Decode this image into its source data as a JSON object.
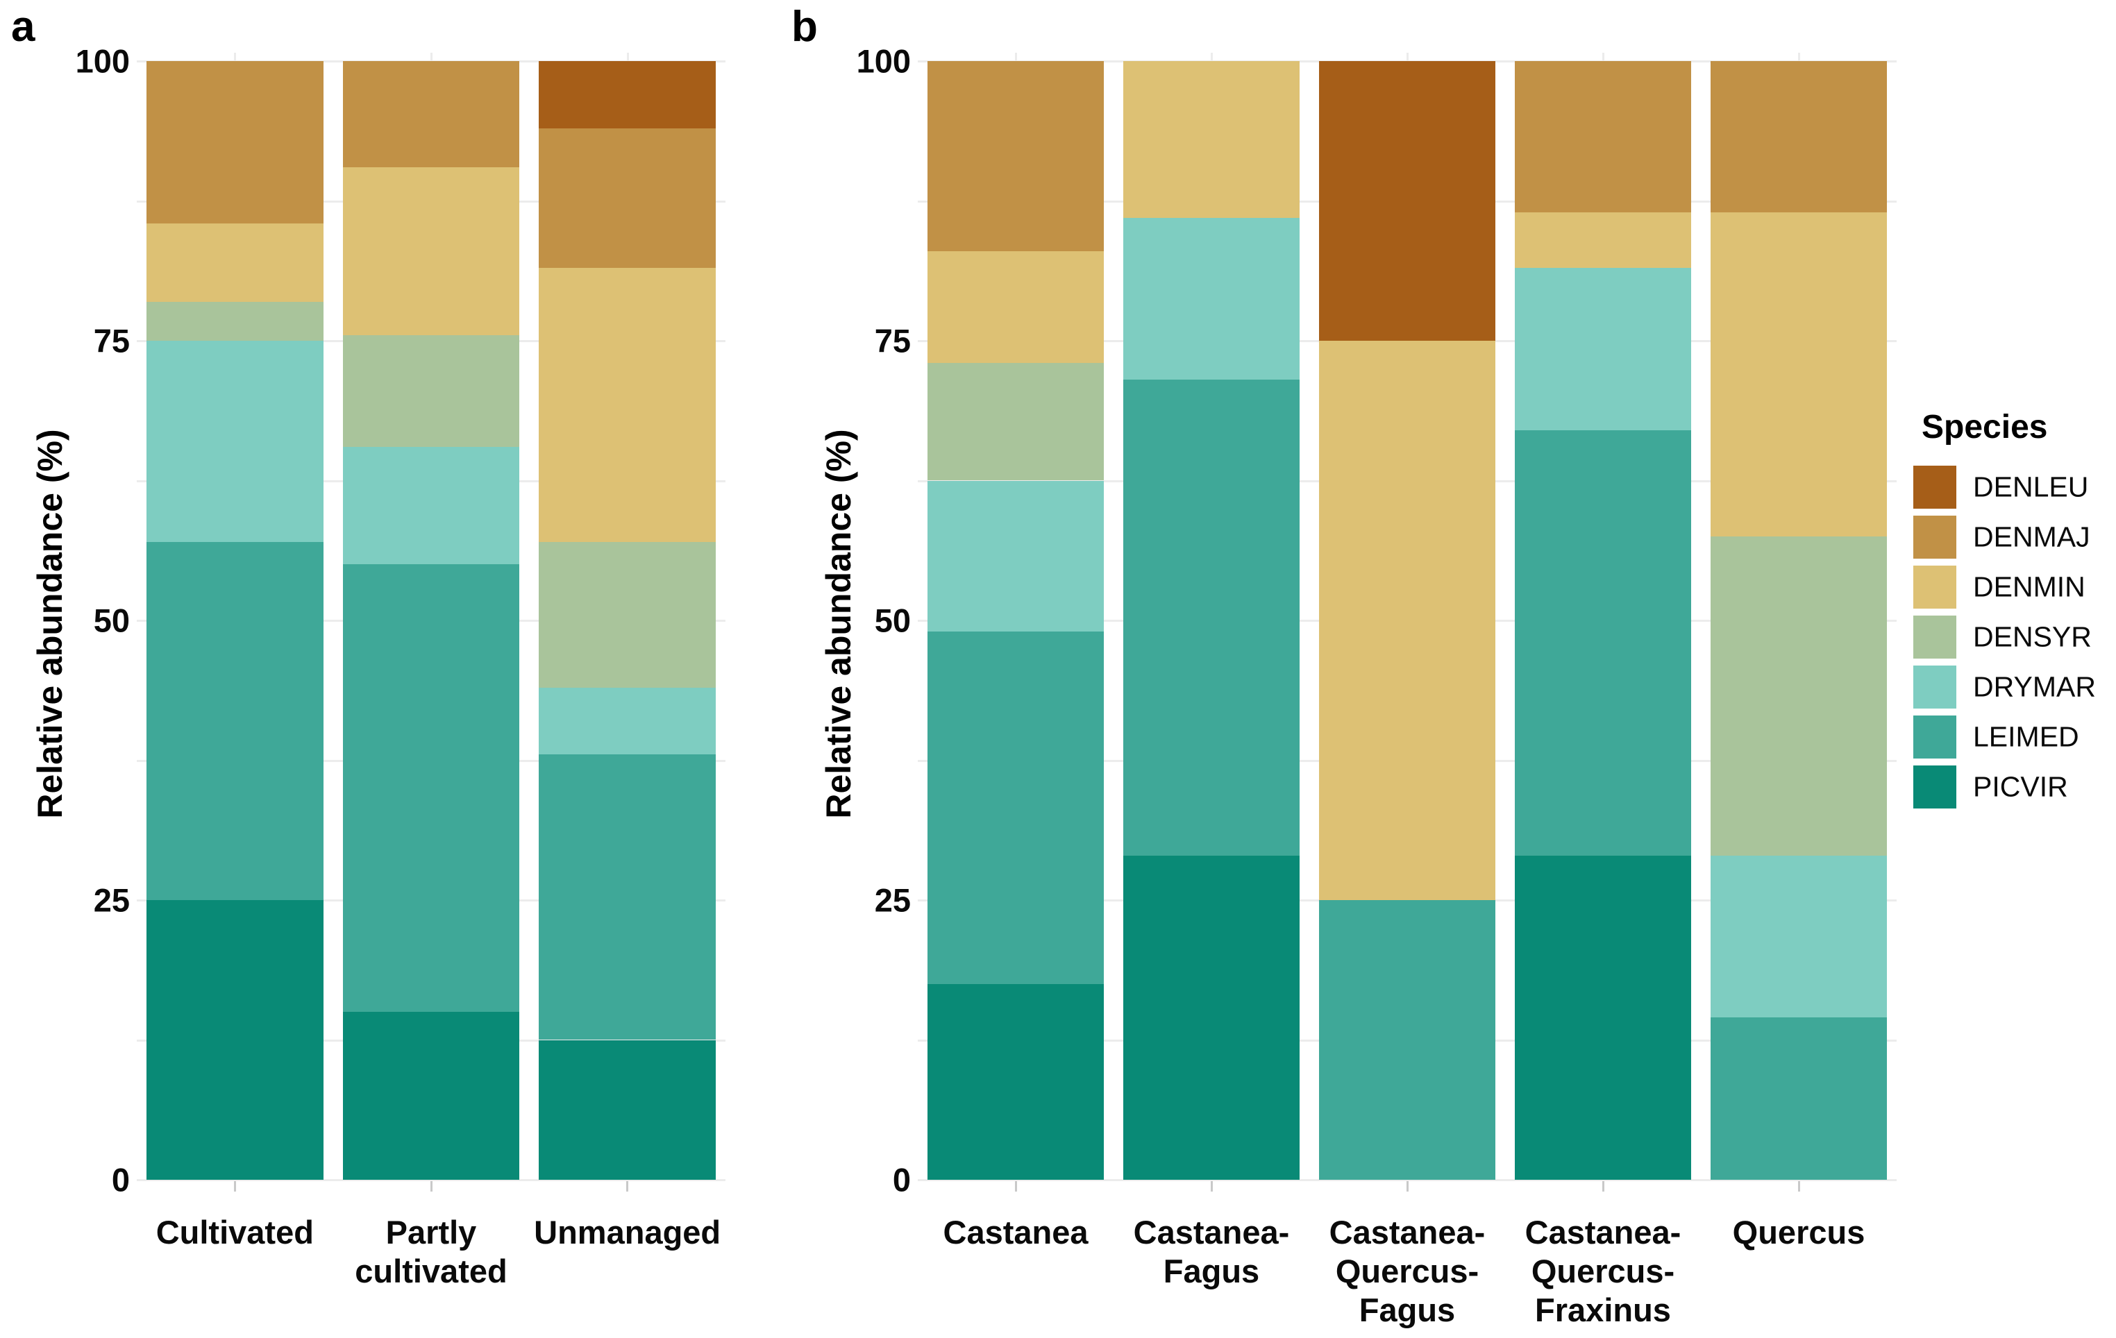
{
  "figure": {
    "panel_a_letter": "a",
    "panel_b_letter": "b",
    "y_axis_title": "Relative abundance (%)"
  },
  "legend": {
    "title": "Species",
    "items": [
      {
        "label": "DENLEU",
        "color": "#a65e18"
      },
      {
        "label": "DENMAJ",
        "color": "#c19146"
      },
      {
        "label": "DENMIN",
        "color": "#ddc174"
      },
      {
        "label": "DENSYR",
        "color": "#a9c49b"
      },
      {
        "label": "DRYMAR",
        "color": "#7ecdc1"
      },
      {
        "label": "LEIMED",
        "color": "#3fa898"
      },
      {
        "label": "PICVIR",
        "color": "#098a76"
      }
    ]
  },
  "palette": {
    "DENLEU": "#a65e18",
    "DENMAJ": "#c19146",
    "DENMIN": "#ddc174",
    "DENSYR": "#a9c49b",
    "DRYMAR": "#7ecdc1",
    "LEIMED": "#3fa898",
    "PICVIR": "#098a76"
  },
  "chart_data": [
    {
      "type": "bar",
      "panel": "a",
      "stacked": true,
      "title": "",
      "xlabel": "",
      "ylabel": "Relative abundance (%)",
      "ylim": [
        0,
        100
      ],
      "y_ticks": [
        0,
        25,
        50,
        75,
        100
      ],
      "minor_grid_step": 12.5,
      "grid": true,
      "categories": [
        "Cultivated",
        "Partly\ncultivated",
        "Unmanaged"
      ],
      "stack_order_bottom_to_top": [
        "PICVIR",
        "LEIMED",
        "DRYMAR",
        "DENSYR",
        "DENMIN",
        "DENMAJ",
        "DENLEU"
      ],
      "series": [
        {
          "name": "PICVIR",
          "values": [
            25,
            15,
            12.5
          ]
        },
        {
          "name": "LEIMED",
          "values": [
            32,
            40,
            25.5
          ]
        },
        {
          "name": "DRYMAR",
          "values": [
            18,
            10.5,
            6
          ]
        },
        {
          "name": "DENSYR",
          "values": [
            3.5,
            10,
            13
          ]
        },
        {
          "name": "DENMIN",
          "values": [
            7,
            15,
            24.5
          ]
        },
        {
          "name": "DENMAJ",
          "values": [
            14.5,
            9.5,
            12.5
          ]
        },
        {
          "name": "DENLEU",
          "values": [
            0,
            0,
            6
          ]
        }
      ]
    },
    {
      "type": "bar",
      "panel": "b",
      "stacked": true,
      "title": "",
      "xlabel": "",
      "ylabel": "Relative abundance (%)",
      "ylim": [
        0,
        100
      ],
      "y_ticks": [
        0,
        25,
        50,
        75,
        100
      ],
      "minor_grid_step": 12.5,
      "grid": true,
      "categories": [
        "Castanea",
        "Castanea-\nFagus",
        "Castanea-\nQuercus-\nFagus",
        "Castanea-\nQuercus-\nFraxinus",
        "Quercus"
      ],
      "stack_order_bottom_to_top": [
        "PICVIR",
        "LEIMED",
        "DRYMAR",
        "DENSYR",
        "DENMIN",
        "DENMAJ",
        "DENLEU"
      ],
      "series": [
        {
          "name": "PICVIR",
          "values": [
            17.5,
            29,
            0,
            29,
            0
          ]
        },
        {
          "name": "LEIMED",
          "values": [
            31.5,
            42.5,
            25,
            38,
            14.5
          ]
        },
        {
          "name": "DRYMAR",
          "values": [
            13.5,
            14.5,
            0,
            14.5,
            14.5
          ]
        },
        {
          "name": "DENSYR",
          "values": [
            10.5,
            0,
            0,
            0,
            28.5
          ]
        },
        {
          "name": "DENMIN",
          "values": [
            10,
            14,
            50,
            5,
            29
          ]
        },
        {
          "name": "DENMAJ",
          "values": [
            17,
            0,
            0,
            13.5,
            13.5
          ]
        },
        {
          "name": "DENLEU",
          "values": [
            0,
            0,
            25,
            0,
            0
          ]
        }
      ]
    }
  ]
}
